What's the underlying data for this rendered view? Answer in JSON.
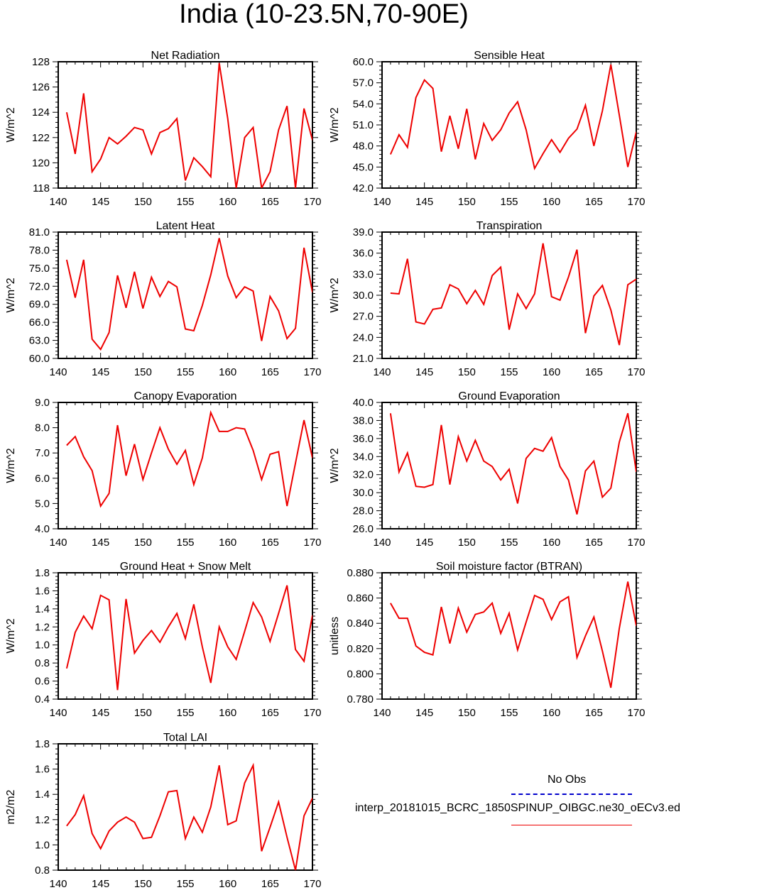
{
  "title": "India (10-23.5N,70-90E)",
  "colors": {
    "model_line": "#ee0000",
    "obs_line": "#0000cc",
    "axis": "#000000"
  },
  "legend": {
    "obs_label": "No Obs",
    "model_label": "interp_20181015_BCRC_1850SPINUP_OIBGC.ne30_oECv3.ed"
  },
  "chart_data": [
    {
      "type": "line",
      "title": "Net Radiation",
      "ylabel": "W/m^2",
      "xlim": [
        140,
        170
      ],
      "ylim": [
        118,
        128
      ],
      "xticks": [
        140,
        145,
        150,
        155,
        160,
        165,
        170
      ],
      "yticks": [
        "118",
        "120",
        "122",
        "124",
        "126",
        "128"
      ],
      "ytick_step": 2,
      "x": [
        141,
        142,
        143,
        144,
        145,
        146,
        147,
        148,
        149,
        150,
        151,
        152,
        153,
        154,
        155,
        156,
        157,
        158,
        159,
        160,
        161,
        162,
        163,
        164,
        165,
        166,
        167,
        168,
        169,
        170
      ],
      "series": [
        {
          "name": "model",
          "values": [
            124.0,
            120.7,
            125.5,
            119.3,
            120.3,
            122.0,
            121.5,
            122.1,
            122.8,
            122.6,
            120.7,
            122.4,
            122.7,
            123.5,
            118.6,
            120.4,
            119.7,
            118.9,
            127.9,
            123.5,
            118.0,
            122.0,
            122.8,
            118.0,
            119.3,
            122.6,
            124.5,
            118.0,
            124.3,
            121.8
          ]
        }
      ]
    },
    {
      "type": "line",
      "title": "Sensible Heat",
      "ylabel": "W/m^2",
      "xlim": [
        140,
        170
      ],
      "ylim": [
        42,
        60
      ],
      "xticks": [
        140,
        145,
        150,
        155,
        160,
        165,
        170
      ],
      "yticks": [
        "42.0",
        "45.0",
        "48.0",
        "51.0",
        "54.0",
        "57.0",
        "60.0"
      ],
      "ytick_step": 3,
      "x": [
        141,
        142,
        143,
        144,
        145,
        146,
        147,
        148,
        149,
        150,
        151,
        152,
        153,
        154,
        155,
        156,
        157,
        158,
        159,
        160,
        161,
        162,
        163,
        164,
        165,
        166,
        167,
        168,
        169,
        170
      ],
      "series": [
        {
          "name": "model",
          "values": [
            46.8,
            49.6,
            47.8,
            54.9,
            57.4,
            56.2,
            47.2,
            52.3,
            47.6,
            53.3,
            46.1,
            51.2,
            48.8,
            50.3,
            52.7,
            54.3,
            50.3,
            44.8,
            46.9,
            48.9,
            47.1,
            49.1,
            50.4,
            53.8,
            48.0,
            53.0,
            59.6,
            52.4,
            45.0,
            50.0
          ]
        }
      ]
    },
    {
      "type": "line",
      "title": "Latent Heat",
      "ylabel": "W/m^2",
      "xlim": [
        140,
        170
      ],
      "ylim": [
        60,
        81
      ],
      "xticks": [
        140,
        145,
        150,
        155,
        160,
        165,
        170
      ],
      "yticks": [
        "60.0",
        "63.0",
        "66.0",
        "69.0",
        "72.0",
        "75.0",
        "78.0",
        "81.0"
      ],
      "ytick_step": 3,
      "x": [
        141,
        142,
        143,
        144,
        145,
        146,
        147,
        148,
        149,
        150,
        151,
        152,
        153,
        154,
        155,
        156,
        157,
        158,
        159,
        160,
        161,
        162,
        163,
        164,
        165,
        166,
        167,
        168,
        169,
        170
      ],
      "series": [
        {
          "name": "model",
          "values": [
            76.4,
            70.1,
            76.4,
            63.2,
            61.5,
            64.3,
            73.8,
            68.4,
            74.4,
            68.3,
            73.5,
            70.3,
            72.8,
            71.9,
            64.9,
            64.6,
            68.8,
            73.9,
            80.0,
            73.7,
            70.1,
            71.9,
            71.2,
            62.9,
            70.3,
            67.9,
            63.3,
            65.0,
            78.4,
            71.0
          ]
        }
      ]
    },
    {
      "type": "line",
      "title": "Transpiration",
      "ylabel": "W/m^2",
      "xlim": [
        140,
        170
      ],
      "ylim": [
        21,
        39
      ],
      "xticks": [
        140,
        145,
        150,
        155,
        160,
        165,
        170
      ],
      "yticks": [
        "21.0",
        "24.0",
        "27.0",
        "30.0",
        "33.0",
        "36.0",
        "39.0"
      ],
      "ytick_step": 3,
      "x": [
        141,
        142,
        143,
        144,
        145,
        146,
        147,
        148,
        149,
        150,
        151,
        152,
        153,
        154,
        155,
        156,
        157,
        158,
        159,
        160,
        161,
        162,
        163,
        164,
        165,
        166,
        167,
        168,
        169,
        170
      ],
      "series": [
        {
          "name": "model",
          "values": [
            30.3,
            30.2,
            35.2,
            26.2,
            25.9,
            28.0,
            28.2,
            31.5,
            30.9,
            28.8,
            30.7,
            28.7,
            32.8,
            34.0,
            25.1,
            30.2,
            28.1,
            30.2,
            37.4,
            29.8,
            29.3,
            32.6,
            36.5,
            24.6,
            29.9,
            31.4,
            27.9,
            22.9,
            31.5,
            32.3
          ]
        }
      ]
    },
    {
      "type": "line",
      "title": "Canopy Evaporation",
      "ylabel": "W/m^2",
      "xlim": [
        140,
        170
      ],
      "ylim": [
        4,
        9
      ],
      "xticks": [
        140,
        145,
        150,
        155,
        160,
        165,
        170
      ],
      "yticks": [
        "4.0",
        "5.0",
        "6.0",
        "7.0",
        "8.0",
        "9.0"
      ],
      "ytick_step": 1,
      "x": [
        141,
        142,
        143,
        144,
        145,
        146,
        147,
        148,
        149,
        150,
        151,
        152,
        153,
        154,
        155,
        156,
        157,
        158,
        159,
        160,
        161,
        162,
        163,
        164,
        165,
        166,
        167,
        168,
        169,
        170
      ],
      "series": [
        {
          "name": "model",
          "values": [
            7.3,
            7.65,
            6.85,
            6.3,
            4.9,
            5.4,
            8.1,
            6.1,
            7.35,
            5.95,
            7.0,
            8.0,
            7.15,
            6.55,
            7.1,
            5.75,
            6.8,
            8.6,
            7.85,
            7.85,
            8.0,
            7.95,
            7.1,
            5.95,
            6.95,
            7.05,
            4.9,
            6.6,
            8.3,
            6.8
          ]
        }
      ]
    },
    {
      "type": "line",
      "title": "Ground Evaporation",
      "ylabel": "W/m^2",
      "xlim": [
        140,
        170
      ],
      "ylim": [
        26,
        40
      ],
      "xticks": [
        140,
        145,
        150,
        155,
        160,
        165,
        170
      ],
      "yticks": [
        "26.0",
        "28.0",
        "30.0",
        "32.0",
        "34.0",
        "36.0",
        "38.0",
        "40.0"
      ],
      "ytick_step": 2,
      "x": [
        141,
        142,
        143,
        144,
        145,
        146,
        147,
        148,
        149,
        150,
        151,
        152,
        153,
        154,
        155,
        156,
        157,
        158,
        159,
        160,
        161,
        162,
        163,
        164,
        165,
        166,
        167,
        168,
        169,
        170
      ],
      "series": [
        {
          "name": "model",
          "values": [
            38.8,
            32.3,
            34.4,
            30.7,
            30.6,
            30.9,
            37.5,
            30.9,
            36.2,
            33.5,
            35.8,
            33.5,
            32.9,
            31.4,
            32.6,
            28.8,
            33.8,
            34.9,
            34.6,
            36.1,
            32.9,
            31.4,
            27.6,
            32.4,
            33.5,
            29.5,
            30.5,
            35.6,
            38.8,
            32.3
          ]
        }
      ]
    },
    {
      "type": "line",
      "title": "Ground Heat + Snow Melt",
      "ylabel": "W/m^2",
      "xlim": [
        140,
        170
      ],
      "ylim": [
        0.4,
        1.8
      ],
      "xticks": [
        140,
        145,
        150,
        155,
        160,
        165,
        170
      ],
      "yticks": [
        "0.4",
        "0.6",
        "0.8",
        "1.0",
        "1.2",
        "1.4",
        "1.6",
        "1.8"
      ],
      "ytick_step": 0.2,
      "x": [
        141,
        142,
        143,
        144,
        145,
        146,
        147,
        148,
        149,
        150,
        151,
        152,
        153,
        154,
        155,
        156,
        157,
        158,
        159,
        160,
        161,
        162,
        163,
        164,
        165,
        166,
        167,
        168,
        169,
        170
      ],
      "series": [
        {
          "name": "model",
          "values": [
            0.74,
            1.14,
            1.32,
            1.18,
            1.55,
            1.5,
            0.5,
            1.51,
            0.91,
            1.05,
            1.16,
            1.03,
            1.2,
            1.35,
            1.07,
            1.45,
            0.98,
            0.58,
            1.2,
            0.98,
            0.84,
            1.15,
            1.47,
            1.31,
            1.04,
            1.35,
            1.66,
            0.95,
            0.82,
            1.33
          ]
        }
      ]
    },
    {
      "type": "line",
      "title": "Soil moisture factor (BTRAN)",
      "ylabel": "unitless",
      "xlim": [
        140,
        170
      ],
      "ylim": [
        0.78,
        0.88
      ],
      "xticks": [
        140,
        145,
        150,
        155,
        160,
        165,
        170
      ],
      "yticks": [
        "0.780",
        "0.800",
        "0.820",
        "0.840",
        "0.860",
        "0.880"
      ],
      "ytick_step": 0.02,
      "x": [
        141,
        142,
        143,
        144,
        145,
        146,
        147,
        148,
        149,
        150,
        151,
        152,
        153,
        154,
        155,
        156,
        157,
        158,
        159,
        160,
        161,
        162,
        163,
        164,
        165,
        166,
        167,
        168,
        169,
        170
      ],
      "series": [
        {
          "name": "model",
          "values": [
            0.856,
            0.844,
            0.844,
            0.822,
            0.817,
            0.815,
            0.853,
            0.824,
            0.852,
            0.833,
            0.847,
            0.849,
            0.856,
            0.832,
            0.848,
            0.819,
            0.841,
            0.862,
            0.859,
            0.843,
            0.857,
            0.861,
            0.813,
            0.83,
            0.845,
            0.818,
            0.789,
            0.836,
            0.873,
            0.838
          ]
        }
      ]
    },
    {
      "type": "line",
      "title": "Total LAI",
      "ylabel": "m2/m2",
      "xlim": [
        140,
        170
      ],
      "ylim": [
        0.8,
        1.8
      ],
      "xticks": [
        140,
        145,
        150,
        155,
        160,
        165,
        170
      ],
      "yticks": [
        "0.8",
        "1.0",
        "1.2",
        "1.4",
        "1.6",
        "1.8"
      ],
      "ytick_step": 0.2,
      "x": [
        141,
        142,
        143,
        144,
        145,
        146,
        147,
        148,
        149,
        150,
        151,
        152,
        153,
        154,
        155,
        156,
        157,
        158,
        159,
        160,
        161,
        162,
        163,
        164,
        165,
        166,
        167,
        168,
        169,
        170
      ],
      "series": [
        {
          "name": "model",
          "values": [
            1.15,
            1.24,
            1.39,
            1.09,
            0.97,
            1.11,
            1.18,
            1.22,
            1.18,
            1.05,
            1.06,
            1.23,
            1.42,
            1.43,
            1.05,
            1.22,
            1.1,
            1.3,
            1.63,
            1.16,
            1.19,
            1.49,
            1.63,
            0.95,
            1.14,
            1.34,
            1.06,
            0.8,
            1.23,
            1.37
          ]
        }
      ]
    }
  ]
}
